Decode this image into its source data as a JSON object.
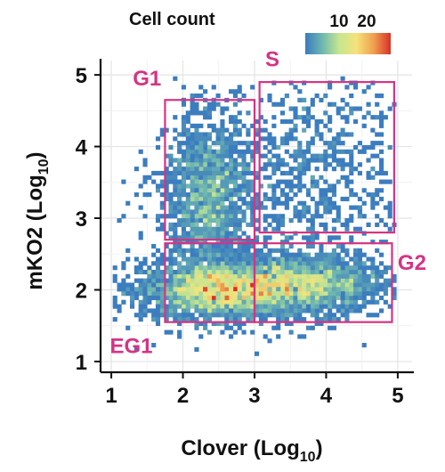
{
  "chart_data": {
    "type": "heatmap",
    "title": "",
    "xlabel": {
      "base": "Clover (Log",
      "sub": "10",
      "close": ")"
    },
    "ylabel": {
      "base": "mKO2 (Log",
      "sub": "10",
      "close": ")"
    },
    "xlim": [
      0.85,
      5.2
    ],
    "ylim": [
      0.85,
      5.2
    ],
    "x_ticks": [
      1,
      2,
      3,
      4,
      5
    ],
    "y_ticks": [
      1,
      2,
      3,
      4,
      5
    ],
    "grid": true,
    "legend": {
      "title": "Cell count",
      "tick_labels": [
        "10",
        "20"
      ],
      "tick_values": [
        10,
        20
      ],
      "range": [
        1,
        25
      ],
      "colors": [
        "#3a7bbf",
        "#6fb8b0",
        "#c8e690",
        "#f5e27a",
        "#f0a050",
        "#d73027"
      ],
      "placement": "top-right"
    },
    "gate_color": "#d63384",
    "gates": [
      {
        "name": "G1",
        "x": [
          1.75,
          3.0
        ],
        "y": [
          2.7,
          4.65
        ]
      },
      {
        "name": "S",
        "x": [
          3.07,
          4.95
        ],
        "y": [
          2.8,
          4.9
        ]
      },
      {
        "name": "EG1",
        "x": [
          1.75,
          3.0
        ],
        "y": [
          1.55,
          2.65
        ]
      },
      {
        "name": "G2",
        "x": [
          3.0,
          4.92
        ],
        "y": [
          1.55,
          2.65
        ]
      }
    ],
    "clusters": [
      {
        "x": 2.5,
        "y": 2.0,
        "sx": 0.55,
        "sy": 0.2,
        "count": 2600,
        "peak": 23
      },
      {
        "x": 3.7,
        "y": 2.08,
        "sx": 0.55,
        "sy": 0.2,
        "count": 1800,
        "peak": 20
      },
      {
        "x": 2.35,
        "y": 3.3,
        "sx": 0.3,
        "sy": 0.55,
        "count": 1500,
        "peak": 15
      },
      {
        "x": 3.8,
        "y": 3.75,
        "sx": 0.7,
        "sy": 0.65,
        "count": 700,
        "peak": 4
      },
      {
        "x": 3.0,
        "y": 2.6,
        "sx": 1.0,
        "sy": 1.0,
        "count": 350,
        "peak": 2
      }
    ]
  }
}
